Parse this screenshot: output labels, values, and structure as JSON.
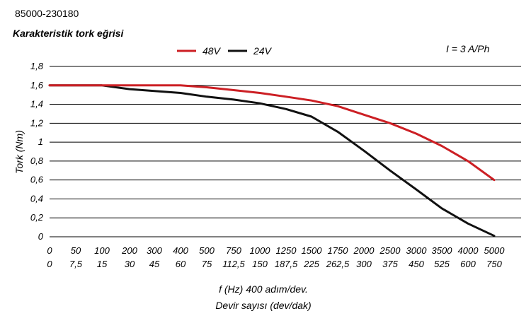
{
  "header": {
    "code": "85000-230180",
    "title": "Karakteristik tork eğrisi"
  },
  "annotation": "I = 3 A/Ph",
  "chart_data": {
    "type": "line",
    "title": "Karakteristik tork eğrisi",
    "ylabel": "Tork (Nm)",
    "xlabel": "f (Hz) 400 adım/dev.",
    "xlabel2": "Devir sayısı (dev/dak)",
    "ylim": [
      0,
      1.8
    ],
    "yticks": [
      "0",
      "0,2",
      "0,4",
      "0,6",
      "0,8",
      "1",
      "1,2",
      "1,4",
      "1,6",
      "1,8"
    ],
    "ytick_values": [
      0,
      0.2,
      0.4,
      0.6,
      0.8,
      1.0,
      1.2,
      1.4,
      1.6,
      1.8
    ],
    "categories": [
      "0",
      "50",
      "100",
      "200",
      "300",
      "400",
      "500",
      "750",
      "1000",
      "1250",
      "1500",
      "1750",
      "2000",
      "2500",
      "3000",
      "3500",
      "4000",
      "5000"
    ],
    "categories2": [
      "0",
      "7,5",
      "15",
      "30",
      "45",
      "60",
      "75",
      "112,5",
      "150",
      "187,5",
      "225",
      "262,5",
      "300",
      "375",
      "450",
      "525",
      "600",
      "750"
    ],
    "legend_position": "top-left",
    "grid": true,
    "series": [
      {
        "name": "48V",
        "color": "#cc1f24",
        "values": [
          1.6,
          1.6,
          1.6,
          1.6,
          1.6,
          1.6,
          1.58,
          1.55,
          1.52,
          1.48,
          1.44,
          1.38,
          1.29,
          1.2,
          1.09,
          0.96,
          0.8,
          0.6
        ]
      },
      {
        "name": "24V",
        "color": "#111111",
        "values": [
          1.6,
          1.6,
          1.6,
          1.56,
          1.54,
          1.52,
          1.48,
          1.45,
          1.41,
          1.35,
          1.27,
          1.11,
          0.91,
          0.7,
          0.5,
          0.3,
          0.14,
          0.01
        ]
      }
    ]
  }
}
